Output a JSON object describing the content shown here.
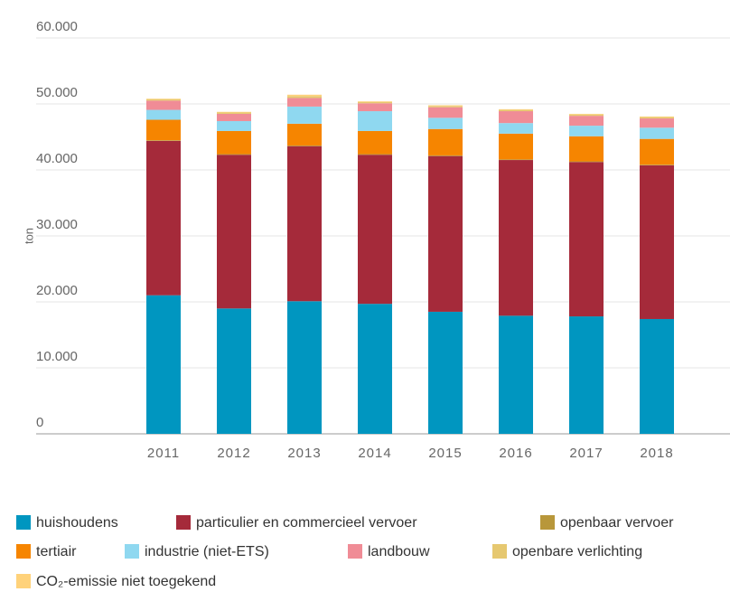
{
  "chart_data": {
    "type": "stacked_bar",
    "y_label": "ton",
    "categories": [
      "2011",
      "2012",
      "2013",
      "2014",
      "2015",
      "2016",
      "2017",
      "2018"
    ],
    "ylim": [
      0,
      60000
    ],
    "yticks": [
      0,
      {
        "value": 10000,
        "label": "10.000"
      },
      {
        "value": 20000,
        "label": "20.000"
      },
      {
        "value": 30000,
        "label": "30.000"
      },
      {
        "value": 40000,
        "label": "40.000"
      },
      {
        "value": 50000,
        "label": "50.000"
      },
      {
        "value": 60000,
        "label": "60.000"
      }
    ],
    "grid": true,
    "legend": "bottom",
    "series": [
      {
        "name": "huishoudens",
        "color": "#0096c0",
        "values": [
          21000,
          19000,
          20100,
          19700,
          18500,
          17900,
          17800,
          17400
        ]
      },
      {
        "name": "particulier en commercieel vervoer",
        "color": "#a52a3a",
        "values": [
          23400,
          23300,
          23500,
          22600,
          23600,
          23600,
          23400,
          23300
        ]
      },
      {
        "name": "openbaar vervoer",
        "color": "#b8973a",
        "values": [
          100,
          100,
          100,
          100,
          100,
          100,
          100,
          100
        ]
      },
      {
        "name": "tertiair",
        "color": "#f68500",
        "values": [
          3100,
          3500,
          3300,
          3500,
          4000,
          3900,
          3800,
          3900
        ]
      },
      {
        "name": "industrie (niet-ETS)",
        "color": "#8fd8f0",
        "values": [
          1500,
          1500,
          2600,
          3000,
          1700,
          1600,
          1600,
          1700
        ]
      },
      {
        "name": "landbouw",
        "color": "#f08c96",
        "values": [
          1400,
          1100,
          1300,
          1200,
          1600,
          1800,
          1500,
          1400
        ]
      },
      {
        "name": "openbare verlichting",
        "color": "#e6c870",
        "values": [
          200,
          200,
          300,
          200,
          200,
          200,
          200,
          200
        ]
      },
      {
        "name": "CO₂-emissie niet toegekend",
        "color": "#ffd27a",
        "values": [
          100,
          100,
          200,
          100,
          100,
          100,
          100,
          100
        ]
      }
    ]
  }
}
